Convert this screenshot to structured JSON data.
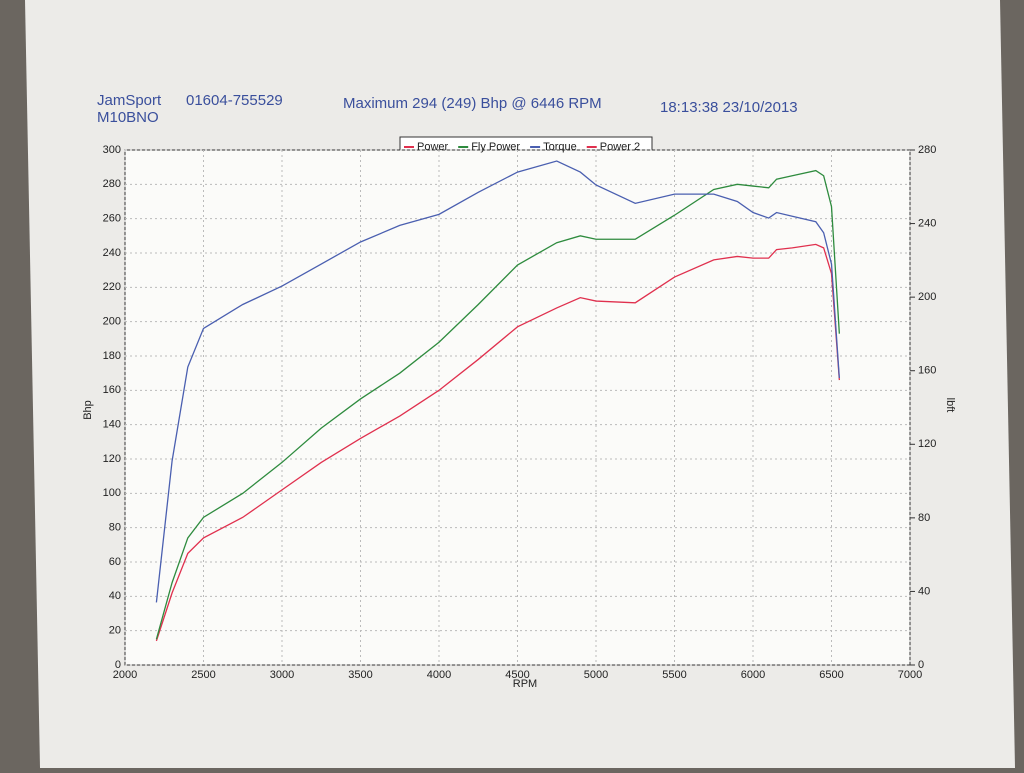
{
  "chart_data": {
    "type": "line",
    "company": "JamSport",
    "phone": "01604-755529",
    "registration": "M10BNO",
    "title": "Maximum 294 (249) Bhp @ 6446 RPM",
    "timestamp": "18:13:38 23/10/2013",
    "x_label": "RPM",
    "y_label": "Bhp",
    "y2_label": "lbft",
    "x": [
      2200,
      2300,
      2400,
      2500,
      2750,
      3000,
      3250,
      3500,
      3750,
      4000,
      4250,
      4500,
      4750,
      4900,
      5000,
      5250,
      5500,
      5750,
      5900,
      6000,
      6100,
      6150,
      6250,
      6400,
      6450,
      6500,
      6550
    ],
    "series": [
      {
        "name": "Power",
        "color": "#e0304e",
        "values": [
          14,
          42,
          65,
          74,
          86,
          102,
          118,
          132,
          145,
          160,
          178,
          197,
          208,
          214,
          212,
          211,
          226,
          236,
          238,
          237,
          237,
          242,
          243,
          245,
          243,
          228,
          166
        ]
      },
      {
        "name": "Fly Power",
        "color": "#2e8b3e",
        "values": [
          15,
          48,
          74,
          86,
          100,
          118,
          138,
          155,
          170,
          188,
          210,
          233,
          246,
          250,
          248,
          248,
          262,
          277,
          280,
          279,
          278,
          283,
          285,
          288,
          285,
          267,
          193
        ]
      },
      {
        "name": "Torque",
        "color": "#4a5fb0",
        "axis": "y2",
        "values": [
          34,
          111,
          162,
          183,
          196,
          206,
          218,
          230,
          239,
          245,
          257,
          268,
          274,
          268,
          261,
          251,
          256,
          256,
          252,
          246,
          243,
          246,
          244,
          241,
          235,
          218,
          156
        ]
      },
      {
        "name": "Power 2",
        "color": "#e0304e",
        "values": [
          null,
          null,
          null,
          null,
          null,
          null,
          null,
          null,
          null,
          null,
          null,
          null,
          null,
          null,
          null,
          null,
          null,
          null,
          null,
          null,
          null,
          null,
          null,
          null,
          null,
          null,
          null
        ]
      }
    ],
    "xlim": [
      2000,
      7000
    ],
    "xticks": [
      2000,
      2500,
      3000,
      3500,
      4000,
      4500,
      5000,
      5500,
      6000,
      6500,
      7000
    ],
    "ylim": [
      0,
      300
    ],
    "yticks": [
      0,
      20,
      40,
      60,
      80,
      100,
      120,
      140,
      160,
      180,
      200,
      220,
      240,
      260,
      280,
      300
    ],
    "y2lim": [
      0,
      280
    ],
    "y2ticks": [
      0,
      40,
      80,
      120,
      160,
      200,
      240,
      280
    ],
    "grid": true
  }
}
